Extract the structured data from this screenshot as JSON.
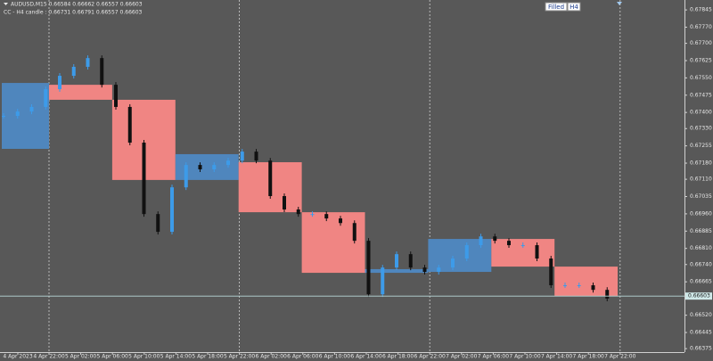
{
  "chart_data": {
    "type": "candlestick",
    "symbol_info": "AUDUSD,M15  0.66584 0.66662 0.66557 0.66603",
    "indicator_info": "CC - H4 candle : 0.66731 0.66791 0.66557 0.66603",
    "buttons": [
      "Filled",
      "H4"
    ],
    "ylim": [
      0.6636,
      0.67888
    ],
    "yticks": [
      {
        "value": 0.67845,
        "label": "0.67845"
      },
      {
        "value": 0.6777,
        "label": "0.67770"
      },
      {
        "value": 0.677,
        "label": "0.67700"
      },
      {
        "value": 0.67625,
        "label": "0.67625"
      },
      {
        "value": 0.6755,
        "label": "0.67550"
      },
      {
        "value": 0.67475,
        "label": "0.67475"
      },
      {
        "value": 0.674,
        "label": "0.67400"
      },
      {
        "value": 0.6733,
        "label": "0.67330"
      },
      {
        "value": 0.67255,
        "label": "0.67255"
      },
      {
        "value": 0.6718,
        "label": "0.67180"
      },
      {
        "value": 0.6711,
        "label": "0.67110"
      },
      {
        "value": 0.67035,
        "label": "0.67035"
      },
      {
        "value": 0.6696,
        "label": "0.66960"
      },
      {
        "value": 0.66885,
        "label": "0.66885"
      },
      {
        "value": 0.6681,
        "label": "0.66810"
      },
      {
        "value": 0.6674,
        "label": "0.66740"
      },
      {
        "value": 0.66665,
        "label": "0.66665"
      },
      {
        "value": 0.6652,
        "label": "0.66520"
      },
      {
        "value": 0.66445,
        "label": "0.66445"
      },
      {
        "value": 0.66375,
        "label": "0.66375"
      }
    ],
    "current_price": 0.66603,
    "categories": [
      "4 Apr 2023",
      "4 Apr 22:00",
      "5 Apr 02:00",
      "5 Apr 06:00",
      "5 Apr 10:00",
      "5 Apr 14:00",
      "5 Apr 18:00",
      "5 Apr 22:00",
      "6 Apr 02:00",
      "6 Apr 06:00",
      "6 Apr 10:00",
      "6 Apr 14:00",
      "6 Apr 18:00",
      "6 Apr 22:00",
      "7 Apr 02:00",
      "7 Apr 06:00",
      "7 Apr 10:00",
      "7 Apr 14:00",
      "7 Apr 18:00",
      "7 Apr 22:00"
    ],
    "day_separators": [
      1,
      7,
      13,
      19
    ],
    "closes": [
      0.67385,
      0.67404,
      0.67424,
      0.67501,
      0.67559,
      0.67598,
      0.67636,
      0.6752,
      0.67424,
      0.67269,
      0.66959,
      0.66882,
      0.67075,
      0.67172,
      0.67153,
      0.67172,
      0.67191,
      0.6723,
      0.67191,
      0.67037,
      0.66979,
      0.66959,
      0.66959,
      0.6694,
      0.6692,
      0.66843,
      0.66611,
      0.66727,
      0.66785,
      0.66727,
      0.66708,
      0.66727,
      0.66766,
      0.66824,
      0.66862,
      0.66843,
      0.66824,
      0.66824,
      0.66766,
      0.6665,
      0.6665,
      0.6665,
      0.6663,
      0.66592
    ],
    "up_color": "#3d9be9",
    "down_color": "#111111",
    "boxes": [
      {
        "open": 0.67242,
        "close": 0.67528
      },
      {
        "open": 0.6752,
        "close": 0.67455
      },
      {
        "open": 0.67455,
        "close": 0.67107
      },
      {
        "open": 0.67107,
        "close": 0.67219
      },
      {
        "open": 0.67184,
        "close": 0.66967
      },
      {
        "open": 0.66967,
        "close": 0.66704
      },
      {
        "open": 0.66704,
        "close": 0.6672
      },
      {
        "open": 0.66708,
        "close": 0.66851
      },
      {
        "open": 0.66851,
        "close": 0.66731
      },
      {
        "open": 0.66731,
        "close": 0.66604
      }
    ],
    "box_up_color": "#4f86bd",
    "box_down_color": "#f08583"
  }
}
